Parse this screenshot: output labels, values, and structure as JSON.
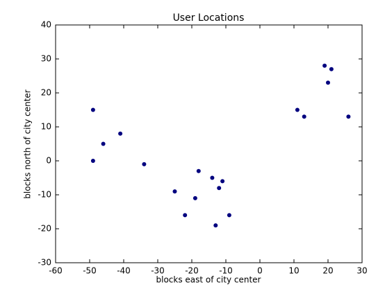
{
  "chart_data": {
    "type": "scatter",
    "title": "User Locations",
    "x_label": "blocks east of city center",
    "y_label": "blocks north of city center",
    "x": [
      -49,
      -46,
      -49,
      -41,
      -34,
      -25,
      -18,
      -19,
      -22,
      -14,
      -11,
      -12,
      -13,
      -9,
      11,
      13,
      19,
      21,
      20,
      26
    ],
    "values": [
      15,
      5,
      0,
      8,
      -1,
      -9,
      -3,
      -11,
      -16,
      -5,
      -6,
      -8,
      -19,
      -16,
      15,
      13,
      28,
      27,
      23,
      13
    ],
    "color": "#00007f",
    "xlim": [
      -60,
      30
    ],
    "xticks": [
      -60,
      -50,
      -40,
      -30,
      -20,
      -10,
      0,
      10,
      20,
      30
    ],
    "ylim": [
      -30,
      40
    ],
    "yticks": [
      -30,
      -20,
      -10,
      0,
      10,
      20,
      30,
      40
    ],
    "grid": false
  }
}
